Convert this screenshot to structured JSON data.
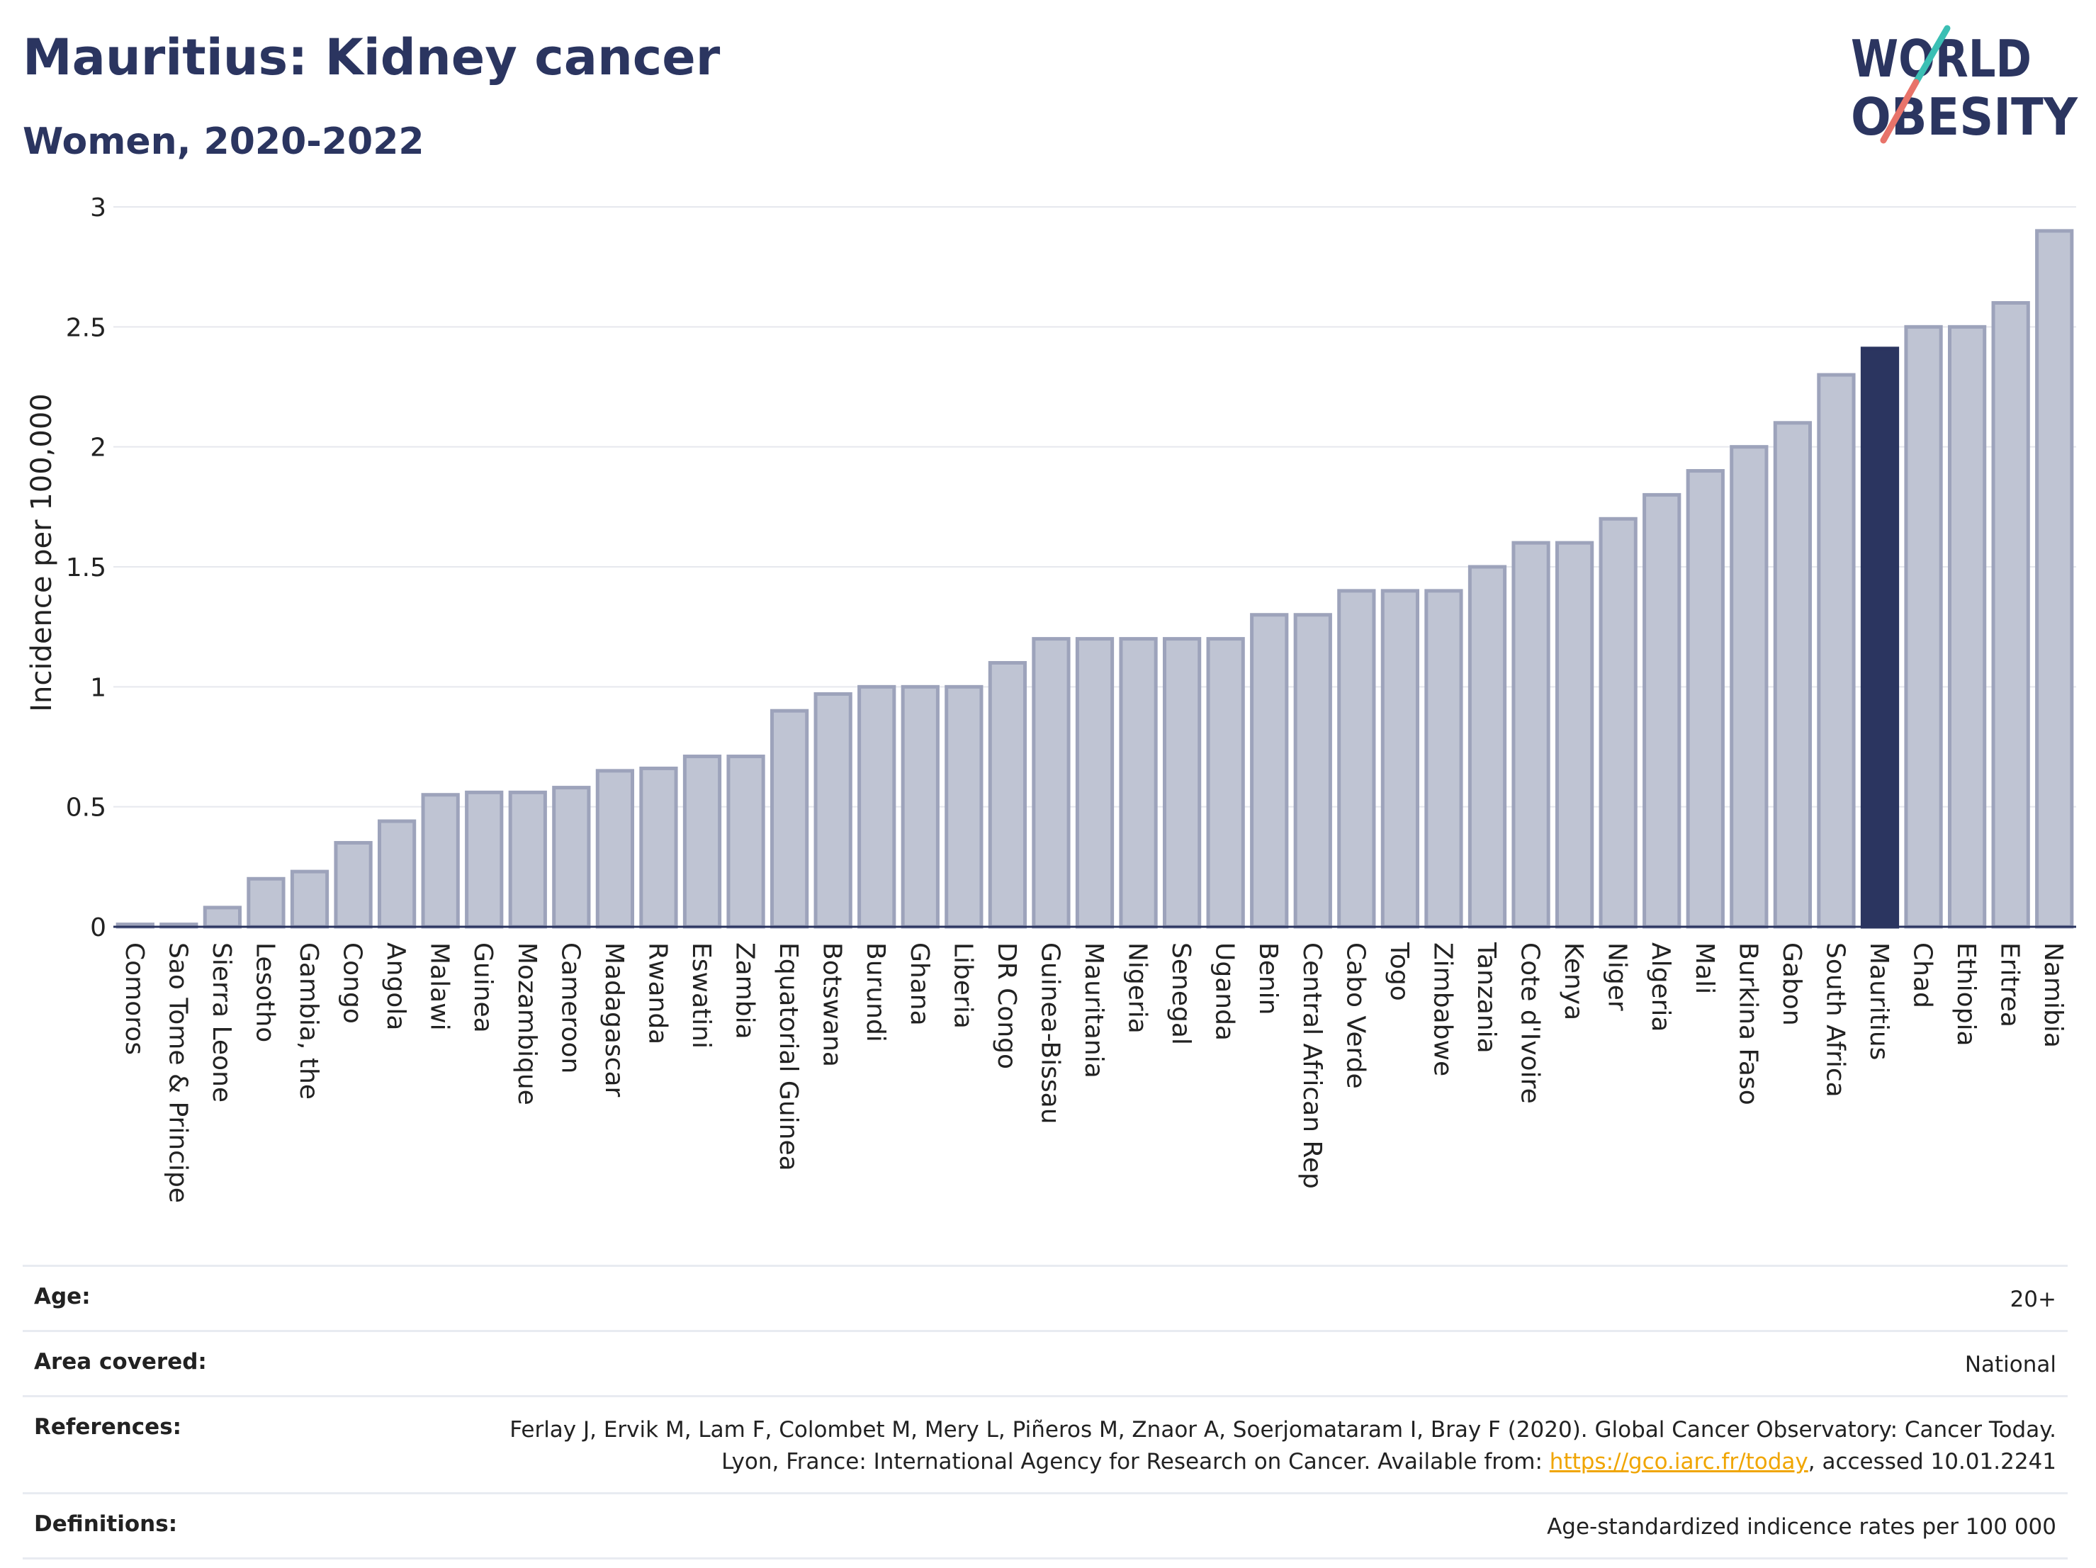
{
  "header": {
    "title": "Mauritius: Kidney cancer",
    "subtitle": "Women, 2020-2022",
    "logo_line1": "WORLD",
    "logo_line2": "OBESITY"
  },
  "colors": {
    "bar": "#bfc4d3",
    "bar_stroke": "#9da3bb",
    "highlight": "#2b3560",
    "grid": "#e6e8ee",
    "text": "#2b3560",
    "link": "#f0a500",
    "logo_teal": "#3bbfb4",
    "logo_red": "#e8736a"
  },
  "chart_data": {
    "type": "bar",
    "title": "Mauritius: Kidney cancer",
    "subtitle": "Women, 2020-2022",
    "xlabel": "",
    "ylabel": "Incidence per 100,000",
    "ylim": [
      0,
      3
    ],
    "yticks": [
      0,
      0.5,
      1,
      1.5,
      2,
      2.5,
      3
    ],
    "ytick_labels": [
      "0",
      "0.5",
      "1",
      "1.5",
      "2",
      "2.5",
      "3"
    ],
    "grid": true,
    "highlight": "Mauritius",
    "categories": [
      "Comoros",
      "Sao Tome & Principe",
      "Sierra Leone",
      "Lesotho",
      "Gambia, the",
      "Congo",
      "Angola",
      "Malawi",
      "Guinea",
      "Mozambique",
      "Cameroon",
      "Madagascar",
      "Rwanda",
      "Eswatini",
      "Zambia",
      "Equatorial Guinea",
      "Botswana",
      "Burundi",
      "Ghana",
      "Liberia",
      "DR Congo",
      "Guinea-Bissau",
      "Mauritania",
      "Nigeria",
      "Senegal",
      "Uganda",
      "Benin",
      "Central African Rep",
      "Cabo Verde",
      "Togo",
      "Zimbabwe",
      "Tanzania",
      "Cote d'Ivoire",
      "Kenya",
      "Niger",
      "Algeria",
      "Mali",
      "Burkina Faso",
      "Gabon",
      "South Africa",
      "Mauritius",
      "Chad",
      "Ethiopia",
      "Eritrea",
      "Namibia"
    ],
    "values": [
      0.01,
      0.01,
      0.08,
      0.2,
      0.23,
      0.35,
      0.44,
      0.55,
      0.56,
      0.56,
      0.58,
      0.65,
      0.66,
      0.71,
      0.71,
      0.9,
      0.97,
      1.0,
      1.0,
      1.0,
      1.1,
      1.2,
      1.2,
      1.2,
      1.2,
      1.2,
      1.3,
      1.3,
      1.4,
      1.4,
      1.4,
      1.5,
      1.6,
      1.6,
      1.7,
      1.8,
      1.9,
      2.0,
      2.1,
      2.3,
      2.41,
      2.5,
      2.5,
      2.6,
      2.9
    ]
  },
  "footer": {
    "rows": [
      {
        "label": "Age:",
        "value": "20+"
      },
      {
        "label": "Area covered:",
        "value": "National"
      },
      {
        "label": "References:",
        "value_pre": "Ferlay J, Ervik M, Lam F, Colombet M, Mery L, Piñeros M, Znaor A, Soerjomataram I, Bray F (2020). Global Cancer Observatory: Cancer Today. Lyon, France: International Agency for Research on Cancer. Available from: ",
        "value_link": "https://gco.iarc.fr/today",
        "value_post": ", accessed 10.01.2241"
      },
      {
        "label": "Definitions:",
        "value": "Age-standardized indicence rates per 100 000"
      }
    ]
  }
}
